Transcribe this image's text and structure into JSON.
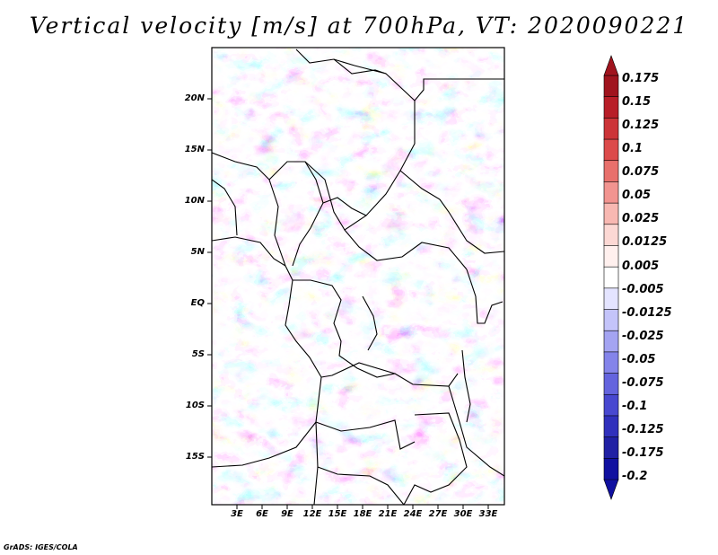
{
  "title": "Vertical velocity [m/s] at 700hPa, VT: 2020090221",
  "credit": "GrADS: IGES/COLA",
  "map": {
    "region": "Central Africa",
    "lon_range": [
      0,
      35
    ],
    "lat_range": [
      -20,
      25
    ],
    "lat_labels": [
      "20N",
      "15N",
      "10N",
      "5N",
      "EQ",
      "5S",
      "10S",
      "15S"
    ],
    "lon_labels": [
      "3E",
      "6E",
      "9E",
      "12E",
      "15E",
      "18E",
      "21E",
      "24E",
      "27E",
      "30E",
      "33E"
    ]
  },
  "colorbar": {
    "labels": [
      "0.175",
      "0.15",
      "0.125",
      "0.1",
      "0.075",
      "0.05",
      "0.025",
      "0.0125",
      "0.005",
      "-0.005",
      "-0.0125",
      "-0.025",
      "-0.05",
      "-0.075",
      "-0.1",
      "-0.125",
      "-0.175",
      "-0.2"
    ],
    "colors": [
      "#a0141e",
      "#b81e28",
      "#cc3438",
      "#dc4b4b",
      "#e8706c",
      "#f29490",
      "#f8b8b2",
      "#fcd8d4",
      "#fff0ee",
      "#ffffff",
      "#e4e4ff",
      "#c4c4fa",
      "#a4a4f2",
      "#8484ea",
      "#6464de",
      "#4848d0",
      "#3030bc",
      "#2020a4",
      "#1010a0"
    ]
  }
}
